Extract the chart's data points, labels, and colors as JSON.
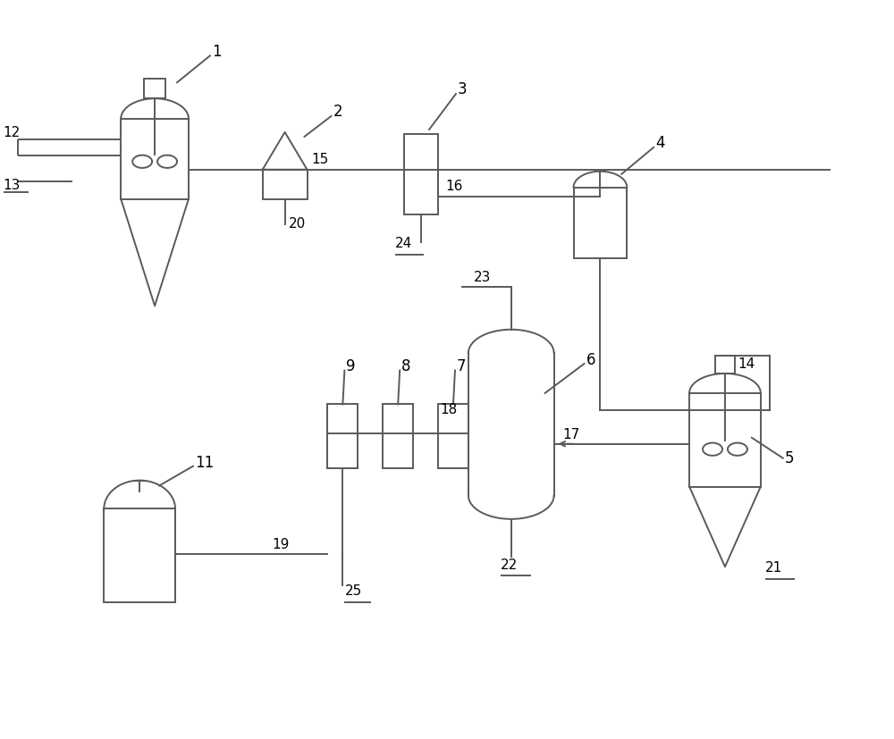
{
  "bg_color": "#ffffff",
  "lc": "#5a5a5a",
  "lw": 1.4,
  "fs": 11
}
